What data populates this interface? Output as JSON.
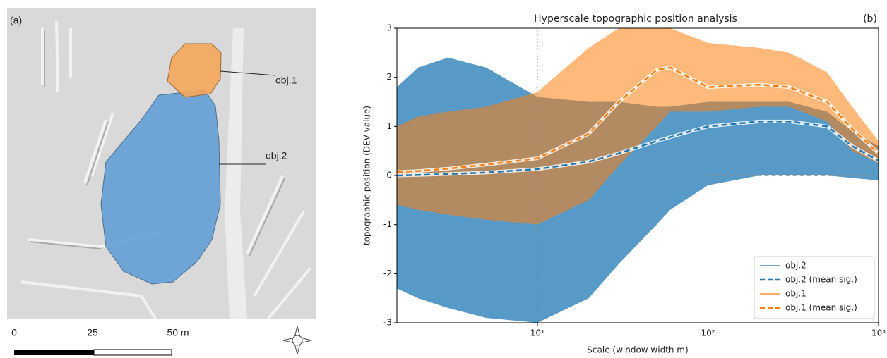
{
  "panel_a": {
    "label": "(a)",
    "objects": [
      "obj.1",
      "obj.2"
    ],
    "scale_labels": [
      "0",
      "25",
      "50 m"
    ]
  },
  "chart_data": {
    "type": "line",
    "panel_label": "(b)",
    "title": "Hyperscale topographic position analysis",
    "xlabel": "Scale (window width m)",
    "ylabel": "topographic position (DEV value)",
    "xscale": "log",
    "xlim": [
      1.5,
      1000
    ],
    "ylim": [
      -3,
      3
    ],
    "xticks": [
      {
        "value": 10,
        "label": "10¹"
      },
      {
        "value": 100,
        "label": "10²"
      },
      {
        "value": 1000,
        "label": "10³"
      }
    ],
    "yticks": [
      -3,
      -2,
      -1,
      0,
      1,
      2,
      3
    ],
    "vlines": [
      10,
      100
    ],
    "hline": 0,
    "legend": "lower right",
    "x": [
      1.5,
      2,
      3,
      5,
      10,
      20,
      30,
      50,
      60,
      100,
      200,
      300,
      500,
      700,
      1000
    ],
    "series": [
      {
        "name": "obj.2",
        "color": "#1f77b4",
        "style": "band",
        "upper": [
          1.8,
          2.2,
          2.4,
          2.2,
          1.6,
          1.5,
          1.5,
          1.4,
          1.4,
          1.5,
          1.5,
          1.5,
          1.3,
          0.9,
          0.6
        ],
        "lower": [
          -2.3,
          -2.5,
          -2.7,
          -2.9,
          -3,
          -2.5,
          -1.8,
          -1,
          -0.7,
          -0.2,
          0,
          0,
          0,
          -0.05,
          -0.1
        ]
      },
      {
        "name": "obj.2 (mean sig.)",
        "color": "#1f77b4",
        "style": "dashed",
        "values": [
          0,
          0.01,
          0.03,
          0.06,
          0.13,
          0.28,
          0.45,
          0.7,
          0.78,
          1.0,
          1.1,
          1.1,
          1.0,
          0.6,
          0.3
        ]
      },
      {
        "name": "obj.1",
        "color": "#ff7f0e",
        "style": "band",
        "upper": [
          1.0,
          1.2,
          1.3,
          1.4,
          1.7,
          2.6,
          3,
          3,
          3,
          2.7,
          2.6,
          2.5,
          2.1,
          1.4,
          0.7
        ],
        "lower": [
          -0.6,
          -0.7,
          -0.8,
          -0.9,
          -1.0,
          -0.5,
          0.2,
          1,
          1.3,
          1.3,
          1.4,
          1.4,
          1.1,
          0.5,
          0.25
        ]
      },
      {
        "name": "obj.1 (mean sig.)",
        "color": "#ff7f0e",
        "style": "dashed",
        "values": [
          0.07,
          0.09,
          0.14,
          0.22,
          0.35,
          0.85,
          1.5,
          2.15,
          2.2,
          1.8,
          1.85,
          1.8,
          1.5,
          0.95,
          0.45
        ]
      }
    ]
  }
}
